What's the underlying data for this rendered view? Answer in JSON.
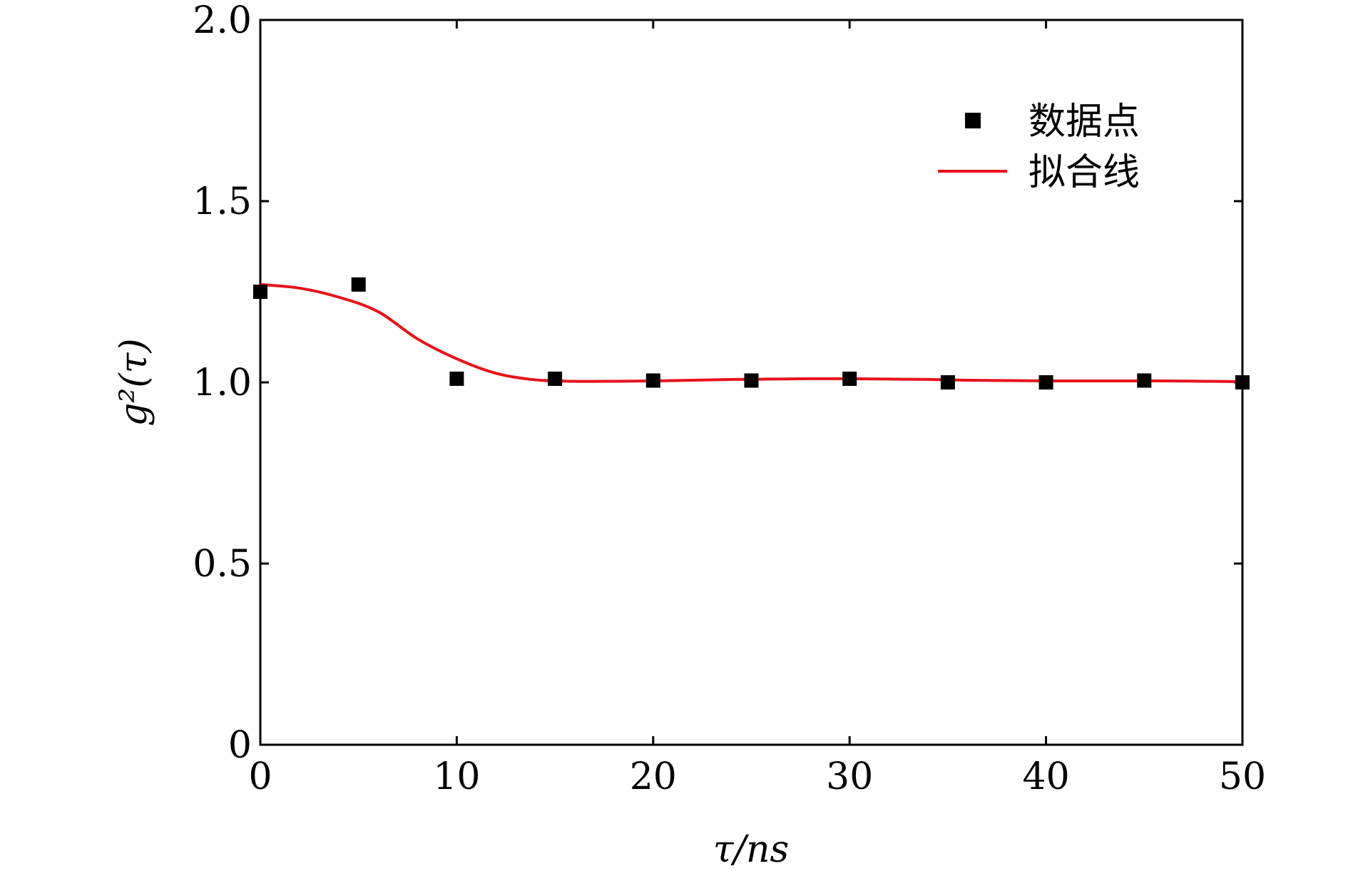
{
  "chart_data": {
    "type": "scatter",
    "xlabel": "τ/ns",
    "ylabel": "g²(τ)",
    "xlim": [
      0,
      50
    ],
    "ylim": [
      0,
      2.0
    ],
    "x_ticks": [
      0,
      10,
      20,
      30,
      40,
      50
    ],
    "x_tick_labels": [
      "0",
      "10",
      "20",
      "30",
      "40",
      "50"
    ],
    "y_ticks": [
      0,
      0.5,
      1.0,
      1.5,
      2.0
    ],
    "y_tick_labels": [
      "0",
      "0.5",
      "1.0",
      "1.5",
      "2.0"
    ],
    "grid": false,
    "legend_position": "top-right",
    "series": [
      {
        "name": "数据点",
        "kind": "markers",
        "marker": "square",
        "color": "#000000",
        "x": [
          0,
          5,
          10,
          15,
          20,
          25,
          30,
          35,
          40,
          45,
          50
        ],
        "y": [
          1.25,
          1.27,
          1.01,
          1.01,
          1.005,
          1.005,
          1.01,
          1.0,
          1.0,
          1.005,
          1.0
        ]
      },
      {
        "name": "拟合线",
        "kind": "line",
        "color": "#e8121b",
        "x": [
          0,
          2,
          4,
          6,
          8,
          10,
          12,
          14,
          16,
          18,
          20,
          22,
          24,
          26,
          28,
          30,
          32,
          34,
          36,
          38,
          40,
          42,
          44,
          46,
          48,
          50
        ],
        "y": [
          1.27,
          1.26,
          1.235,
          1.195,
          1.12,
          1.065,
          1.025,
          1.007,
          1.003,
          1.003,
          1.004,
          1.006,
          1.008,
          1.009,
          1.01,
          1.01,
          1.009,
          1.008,
          1.006,
          1.005,
          1.004,
          1.004,
          1.004,
          1.004,
          1.003,
          1.002
        ]
      }
    ]
  }
}
